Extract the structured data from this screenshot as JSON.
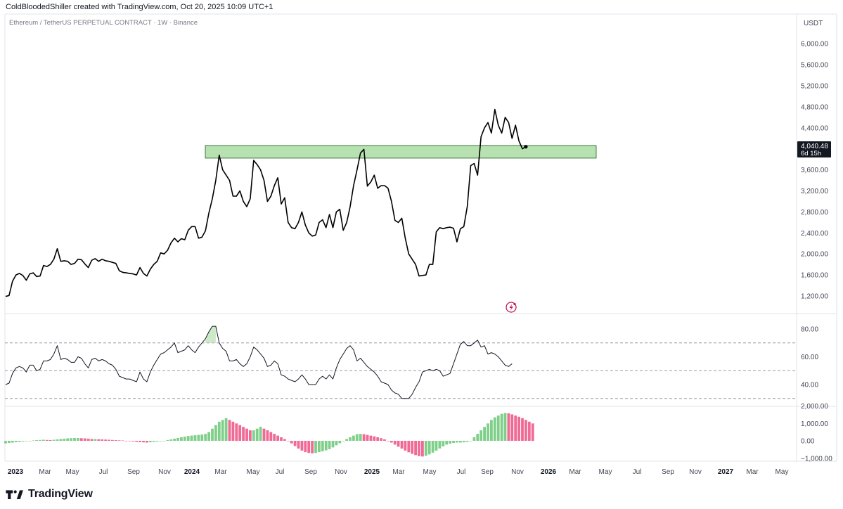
{
  "header": {
    "attribution": "ColdBloodedShiller created with TradingView.com, Oct 20, 2025 10:09 UTC+1",
    "symbol": "Ethereum / TetherUS PERPETUAL CONTRACT · 1W · Binance"
  },
  "price_axis": {
    "currency": "USDT",
    "ticks": [
      "6,000.00",
      "5,600.00",
      "5,200.00",
      "4,800.00",
      "4,400.00",
      "4,000.00",
      "3,600.00",
      "3,200.00",
      "2,800.00",
      "2,400.00",
      "2,000.00",
      "1,600.00",
      "1,200.00"
    ]
  },
  "current_price": {
    "value": "4,040.48",
    "countdown": "6d 15h"
  },
  "rsi_axis": {
    "ticks": [
      "80.00",
      "60.00",
      "40.00"
    ]
  },
  "hist_axis": {
    "ticks": [
      "2,000.00",
      "1,000.00",
      "0.00",
      "−1,000.00"
    ]
  },
  "time_axis": {
    "labels": [
      {
        "t": "2023",
        "year": true
      },
      {
        "t": "Mar",
        "year": false
      },
      {
        "t": "May",
        "year": false
      },
      {
        "t": "Jul",
        "year": false
      },
      {
        "t": "Sep",
        "year": false
      },
      {
        "t": "Nov",
        "year": false
      },
      {
        "t": "2024",
        "year": true
      },
      {
        "t": "Mar",
        "year": false
      },
      {
        "t": "May",
        "year": false
      },
      {
        "t": "Jul",
        "year": false
      },
      {
        "t": "Sep",
        "year": false
      },
      {
        "t": "Nov",
        "year": false
      },
      {
        "t": "2025",
        "year": true
      },
      {
        "t": "Mar",
        "year": false
      },
      {
        "t": "May",
        "year": false
      },
      {
        "t": "Jul",
        "year": false
      },
      {
        "t": "Sep",
        "year": false
      },
      {
        "t": "Nov",
        "year": false
      },
      {
        "t": "2026",
        "year": true
      },
      {
        "t": "Mar",
        "year": false
      },
      {
        "t": "May",
        "year": false
      },
      {
        "t": "Jul",
        "year": false
      },
      {
        "t": "Sep",
        "year": false
      },
      {
        "t": "Nov",
        "year": false
      },
      {
        "t": "2027",
        "year": true
      },
      {
        "t": "Mar",
        "year": false
      },
      {
        "t": "May",
        "year": false
      }
    ]
  },
  "colors": {
    "line": "#000000",
    "zone_fill": "#b7e1b0",
    "zone_stroke": "#1b5e20",
    "hist_up": "#7fcf8a",
    "hist_down": "#ef6a94",
    "badge_bg": "#131722",
    "flash": "#c2185b"
  },
  "footer": {
    "brand": "TradingView",
    "logo": "tradingview-logo-icon"
  },
  "chart_data": [
    {
      "type": "line",
      "title": "Ethereum / TetherUS PERPETUAL CONTRACT · 1W · Binance",
      "ylabel": "USDT",
      "ylim": [
        1000,
        6200
      ],
      "x_start": "2023-01-02",
      "x_step": "1 week",
      "values": [
        1190,
        1210,
        1480,
        1600,
        1630,
        1590,
        1500,
        1620,
        1640,
        1570,
        1580,
        1780,
        1760,
        1800,
        1900,
        2100,
        1860,
        1870,
        1860,
        1800,
        1820,
        1900,
        1890,
        1810,
        1740,
        1880,
        1910,
        1860,
        1900,
        1870,
        1860,
        1840,
        1820,
        1680,
        1650,
        1640,
        1630,
        1620,
        1600,
        1740,
        1630,
        1580,
        1710,
        1800,
        1860,
        2020,
        2000,
        2070,
        2210,
        2300,
        2230,
        2290,
        2270,
        2450,
        2520,
        2520,
        2300,
        2320,
        2440,
        2780,
        3050,
        3400,
        3880,
        3600,
        3500,
        3400,
        3100,
        3100,
        3200,
        3000,
        2900,
        3050,
        3780,
        3700,
        3600,
        3400,
        3000,
        3100,
        3300,
        3450,
        2950,
        3070,
        2600,
        2500,
        2480,
        2600,
        2800,
        2550,
        2400,
        2340,
        2360,
        2600,
        2650,
        2500,
        2750,
        2500,
        2800,
        2850,
        2450,
        2600,
        2900,
        3300,
        3600,
        3920,
        3990,
        3290,
        3370,
        3500,
        3250,
        3300,
        3300,
        3250,
        3000,
        2640,
        2600,
        2680,
        2300,
        2000,
        1900,
        1800,
        1580,
        1590,
        1600,
        1800,
        1800,
        2420,
        2500,
        2480,
        2500,
        2510,
        2490,
        2230,
        2480,
        2520,
        2900,
        3680,
        3720,
        3500,
        4230,
        4400,
        4500,
        4300,
        4750,
        4450,
        4300,
        4600,
        4500,
        4200,
        4450,
        4150,
        4000,
        4040.48
      ],
      "zone": {
        "low": 3930,
        "high": 4050,
        "start_index": 54,
        "end_index": 208
      }
    },
    {
      "type": "line",
      "title": "",
      "ylim": [
        25,
        95
      ],
      "levels": [
        70,
        50,
        30
      ],
      "values": [
        40,
        41,
        48,
        52,
        53,
        52,
        49,
        54,
        54,
        50,
        51,
        57,
        57,
        58,
        62,
        68,
        58,
        59,
        58,
        56,
        56,
        60,
        59,
        55,
        52,
        58,
        59,
        57,
        58,
        57,
        55,
        54,
        51,
        46,
        45,
        44,
        44,
        43,
        42,
        49,
        44,
        42,
        49,
        54,
        58,
        62,
        63,
        65,
        67,
        70,
        63,
        64,
        65,
        68,
        65,
        63,
        67,
        70,
        73,
        78,
        82,
        82,
        70,
        66,
        64,
        57,
        57,
        58,
        55,
        53,
        55,
        60,
        67,
        65,
        62,
        59,
        53,
        54,
        57,
        55,
        47,
        46,
        44,
        43,
        42,
        44,
        47,
        44,
        40,
        40,
        40,
        44,
        46,
        44,
        47,
        44,
        52,
        58,
        62,
        66,
        68,
        65,
        57,
        59,
        56,
        53,
        51,
        49,
        46,
        42,
        41,
        40,
        36,
        34,
        33,
        30,
        30,
        30,
        33,
        38,
        42,
        49,
        50,
        51,
        50,
        51,
        50,
        46,
        47,
        48,
        55,
        62,
        69,
        71,
        68,
        68,
        70,
        72,
        67,
        68,
        62,
        63,
        62,
        60,
        57,
        54,
        53,
        55
      ]
    },
    {
      "type": "bar",
      "title": "",
      "ylim": [
        -1300,
        2300
      ],
      "values": [
        -150,
        -120,
        -100,
        -80,
        -60,
        -40,
        -20,
        0,
        20,
        40,
        50,
        60,
        50,
        40,
        60,
        80,
        100,
        120,
        140,
        150,
        160,
        160,
        150,
        140,
        120,
        100,
        100,
        90,
        80,
        70,
        60,
        50,
        40,
        30,
        20,
        0,
        -20,
        -40,
        -60,
        -80,
        -90,
        -100,
        -80,
        -60,
        -40,
        -20,
        0,
        40,
        80,
        120,
        160,
        200,
        240,
        280,
        300,
        320,
        340,
        360,
        400,
        500,
        700,
        900,
        1100,
        1200,
        1300,
        1200,
        1100,
        1000,
        900,
        800,
        700,
        600,
        600,
        700,
        800,
        700,
        600,
        500,
        400,
        300,
        200,
        100,
        0,
        -150,
        -300,
        -450,
        -560,
        -650,
        -700,
        -720,
        -700,
        -650,
        -600,
        -550,
        -480,
        -380,
        -260,
        -140,
        -20,
        100,
        200,
        300,
        380,
        400,
        380,
        340,
        300,
        260,
        200,
        150,
        80,
        0,
        -100,
        -220,
        -340,
        -450,
        -560,
        -660,
        -750,
        -820,
        -880,
        -900,
        -860,
        -780,
        -680,
        -560,
        -440,
        -320,
        -220,
        -160,
        -120,
        -100,
        -100,
        -90,
        -60,
        0,
        200,
        400,
        600,
        800,
        1000,
        1200,
        1350,
        1450,
        1550,
        1600,
        1580,
        1520,
        1450,
        1380,
        1300,
        1200,
        1100,
        1000
      ]
    }
  ]
}
